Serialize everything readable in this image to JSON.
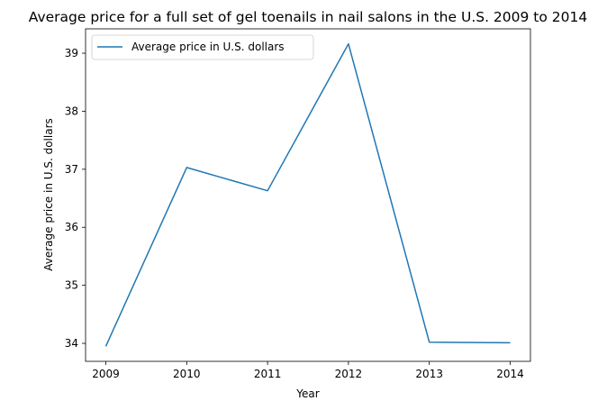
{
  "chart_data": {
    "type": "line",
    "title": "Average price for a full set of gel toenails in nail salons in the U.S. 2009 to 2014",
    "xlabel": "Year",
    "ylabel": "Average price in U.S. dollars",
    "x": [
      "2009",
      "2010",
      "2011",
      "2012",
      "2013",
      "2014"
    ],
    "series": [
      {
        "name": "Average price in U.S. dollars",
        "values": [
          33.95,
          37.03,
          36.63,
          39.16,
          34.02,
          34.01
        ],
        "color": "#1f77b4"
      }
    ],
    "yticks": [
      "34",
      "35",
      "36",
      "37",
      "38",
      "39"
    ],
    "ylim": [
      33.69,
      39.42
    ],
    "grid": false,
    "legend": "top-left"
  }
}
